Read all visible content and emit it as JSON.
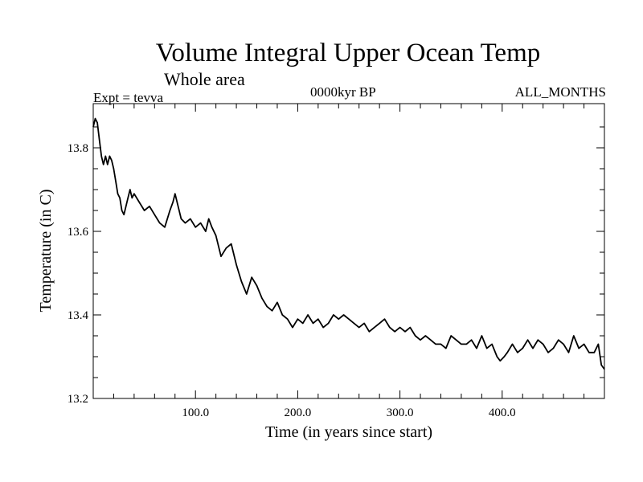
{
  "header": {
    "title": "Volume Integral Upper Ocean Temp",
    "subtitle": "Whole area",
    "experiment": "Expt = tevva",
    "period": "0000kyr BP",
    "months": "ALL_MONTHS"
  },
  "chart_data": {
    "type": "line",
    "title": "Volume Integral Upper Ocean Temp",
    "subtitle": "Whole area",
    "xlabel": "Time (in years since start)",
    "ylabel": "Temperature (in C)",
    "xlim": [
      0,
      500
    ],
    "ylim": [
      13.2,
      13.9
    ],
    "x_ticks": [
      100,
      200,
      300,
      400
    ],
    "x_tick_labels": [
      "100.0",
      "200.0",
      "300.0",
      "400.0"
    ],
    "y_ticks": [
      13.2,
      13.4,
      13.6,
      13.8
    ],
    "y_tick_labels": [
      "13.2",
      "13.4",
      "13.6",
      "13.8"
    ],
    "grid": false,
    "series": [
      {
        "color": "#000000",
        "x": [
          0,
          2,
          4,
          6,
          8,
          10,
          12,
          14,
          16,
          18,
          20,
          22,
          24,
          26,
          28,
          30,
          32,
          34,
          36,
          38,
          40,
          45,
          50,
          55,
          60,
          65,
          70,
          75,
          78,
          80,
          83,
          86,
          90,
          95,
          100,
          105,
          110,
          113,
          116,
          120,
          125,
          130,
          135,
          140,
          145,
          150,
          155,
          160,
          165,
          170,
          175,
          180,
          185,
          190,
          195,
          200,
          205,
          210,
          215,
          220,
          225,
          230,
          235,
          240,
          245,
          250,
          255,
          260,
          265,
          270,
          275,
          280,
          285,
          290,
          295,
          300,
          305,
          310,
          315,
          320,
          325,
          330,
          335,
          340,
          345,
          350,
          355,
          360,
          365,
          370,
          375,
          380,
          385,
          390,
          395,
          398,
          402,
          405,
          410,
          415,
          420,
          425,
          430,
          435,
          440,
          445,
          450,
          455,
          460,
          465,
          470,
          475,
          480,
          485,
          490,
          494,
          497,
          500
        ],
        "y": [
          13.85,
          13.87,
          13.86,
          13.82,
          13.78,
          13.76,
          13.78,
          13.76,
          13.78,
          13.77,
          13.75,
          13.72,
          13.69,
          13.68,
          13.65,
          13.64,
          13.66,
          13.68,
          13.7,
          13.68,
          13.69,
          13.67,
          13.65,
          13.66,
          13.64,
          13.62,
          13.61,
          13.65,
          13.67,
          13.69,
          13.66,
          13.63,
          13.62,
          13.63,
          13.61,
          13.62,
          13.6,
          13.63,
          13.61,
          13.59,
          13.54,
          13.56,
          13.57,
          13.52,
          13.48,
          13.45,
          13.49,
          13.47,
          13.44,
          13.42,
          13.41,
          13.43,
          13.4,
          13.39,
          13.37,
          13.39,
          13.38,
          13.4,
          13.38,
          13.39,
          13.37,
          13.38,
          13.4,
          13.39,
          13.4,
          13.39,
          13.38,
          13.37,
          13.38,
          13.36,
          13.37,
          13.38,
          13.39,
          13.37,
          13.36,
          13.37,
          13.36,
          13.37,
          13.35,
          13.34,
          13.35,
          13.34,
          13.33,
          13.33,
          13.32,
          13.35,
          13.34,
          13.33,
          13.33,
          13.34,
          13.32,
          13.35,
          13.32,
          13.33,
          13.3,
          13.29,
          13.3,
          13.31,
          13.33,
          13.31,
          13.32,
          13.34,
          13.32,
          13.34,
          13.33,
          13.31,
          13.32,
          13.34,
          13.33,
          13.31,
          13.35,
          13.32,
          13.33,
          13.31,
          13.31,
          13.33,
          13.28,
          13.27
        ]
      }
    ]
  }
}
